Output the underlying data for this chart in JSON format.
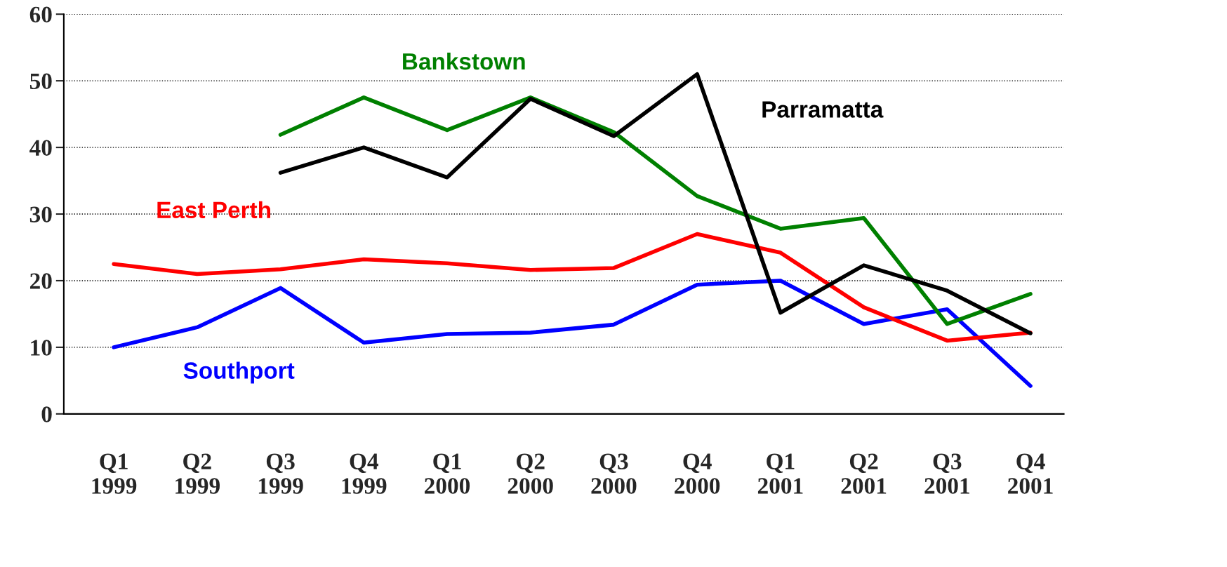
{
  "chart_data": {
    "type": "line",
    "categories": [
      "Q1\n1999",
      "Q2\n1999",
      "Q3\n1999",
      "Q4\n1999",
      "Q1\n2000",
      "Q2\n2000",
      "Q3\n2000",
      "Q4\n2000",
      "Q1\n2001",
      "Q2\n2001",
      "Q3\n2001",
      "Q4\n2001"
    ],
    "series": [
      {
        "name": "Southport",
        "color": "#0000ff",
        "values": [
          10.0,
          13.0,
          18.9,
          10.7,
          12.0,
          12.2,
          13.4,
          19.4,
          20.0,
          13.5,
          15.7,
          4.2
        ]
      },
      {
        "name": "East Perth",
        "color": "#ff0000",
        "values": [
          22.5,
          21.0,
          21.7,
          23.2,
          22.6,
          21.6,
          21.9,
          27.0,
          24.2,
          16.0,
          11.0,
          12.2
        ]
      },
      {
        "name": "Bankstown",
        "color": "#008000",
        "values": [
          null,
          null,
          41.9,
          47.5,
          42.6,
          47.5,
          42.3,
          32.7,
          27.8,
          29.4,
          13.5,
          18.0
        ]
      },
      {
        "name": "Parramatta",
        "color": "#000000",
        "values": [
          null,
          null,
          36.2,
          40.0,
          35.5,
          47.3,
          41.7,
          51.0,
          15.2,
          22.3,
          18.5,
          12.1
        ]
      }
    ],
    "ylim": [
      0,
      60
    ],
    "yticks": [
      0,
      10,
      20,
      30,
      40,
      50,
      60
    ],
    "grid": "y",
    "legend": false,
    "line_style": "solid",
    "marker": "none"
  }
}
